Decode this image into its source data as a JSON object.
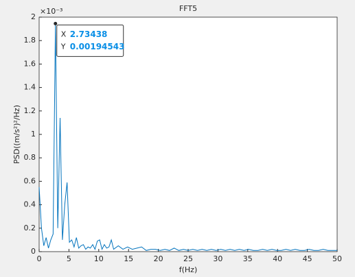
{
  "chart_data": {
    "type": "line",
    "title": "FFT5",
    "xlabel": "f(Hz)",
    "ylabel": "PSD((m/s²)²/Hz)",
    "y_exponent": "×10⁻³",
    "x": [
      0,
      0.390625,
      0.78125,
      1.171875,
      1.5625,
      1.953125,
      2.34375,
      2.734375,
      3.125,
      3.515625,
      3.90625,
      4.296875,
      4.6875,
      5.078125,
      5.46875,
      5.859375,
      6.25,
      6.640625,
      7.03125,
      7.421875,
      7.8125,
      8.203125,
      8.59375,
      8.984375,
      9.375,
      9.765625,
      10.15625,
      10.546875,
      10.9375,
      11.328125,
      11.71875,
      12.109375,
      12.5,
      13.28125,
      14.0625,
      14.84375,
      15.625,
      16.40625,
      17.1875,
      17.96875,
      18.75,
      19.53125,
      20.3125,
      21.09375,
      21.875,
      22.65625,
      23.4375,
      24.21875,
      25,
      25.78125,
      26.5625,
      27.34375,
      28.125,
      28.90625,
      29.6875,
      30.46875,
      31.25,
      32.03125,
      32.8125,
      33.59375,
      34.375,
      35.15625,
      35.9375,
      36.71875,
      37.5,
      38.28125,
      39.0625,
      39.84375,
      40.625,
      41.40625,
      42.1875,
      42.96875,
      43.75,
      44.53125,
      45.3125,
      46.09375,
      46.875,
      47.65625,
      48.4375,
      49.21875,
      50
    ],
    "series": [
      {
        "name": "FFT5",
        "color": "#0072bd",
        "values": [
          0.00055,
          0.0002,
          5e-05,
          0.00012,
          3e-05,
          0.0001,
          0.00015,
          0.00194543,
          0.0002,
          0.00114,
          0.0001,
          0.0004,
          0.00059,
          8e-05,
          0.0001,
          4e-05,
          0.00012,
          3e-05,
          5e-05,
          6e-05,
          2e-05,
          4e-05,
          3e-05,
          6e-05,
          2e-05,
          9e-05,
          0.0001,
          2e-05,
          6e-05,
          3e-05,
          4e-05,
          0.0001,
          2e-05,
          5e-05,
          2e-05,
          4e-05,
          2e-05,
          3e-05,
          4e-05,
          1e-05,
          2e-05,
          2e-05,
          1e-05,
          2e-05,
          1e-05,
          3e-05,
          1e-05,
          2e-05,
          1e-05,
          2e-05,
          1e-05,
          2e-05,
          1e-05,
          2e-05,
          1e-05,
          2e-05,
          1e-05,
          2e-05,
          1e-05,
          2e-05,
          1e-05,
          2e-05,
          1e-05,
          1e-05,
          2e-05,
          1e-05,
          2e-05,
          1e-05,
          1e-05,
          2e-05,
          1e-05,
          2e-05,
          1e-05,
          1e-05,
          2e-05,
          1e-05,
          1e-05,
          2e-05,
          1e-05,
          1e-05,
          1e-05
        ]
      }
    ],
    "xlim": [
      0,
      50
    ],
    "xticks": [
      0,
      5,
      10,
      15,
      20,
      25,
      30,
      35,
      40,
      45,
      50
    ],
    "ylim": [
      0,
      0.002
    ],
    "yticks": [
      0,
      {
        "value": 0.0002,
        "label": "0.2"
      },
      {
        "value": 0.0004,
        "label": "0.4"
      },
      {
        "value": 0.0006,
        "label": "0.6"
      },
      {
        "value": 0.0008,
        "label": "0.8"
      },
      {
        "value": 0.001,
        "label": "1"
      },
      {
        "value": 0.0012,
        "label": "1.2"
      },
      {
        "value": 0.0014,
        "label": "1.4"
      },
      {
        "value": 0.0016,
        "label": "1.6"
      },
      {
        "value": 0.0018,
        "label": "1.8"
      },
      {
        "value": 0.002,
        "label": "2"
      }
    ],
    "datatip": {
      "index": 7,
      "x_label": "X",
      "x_text": "2.73438",
      "y_label": "Y",
      "y_text": "0.00194543"
    }
  }
}
